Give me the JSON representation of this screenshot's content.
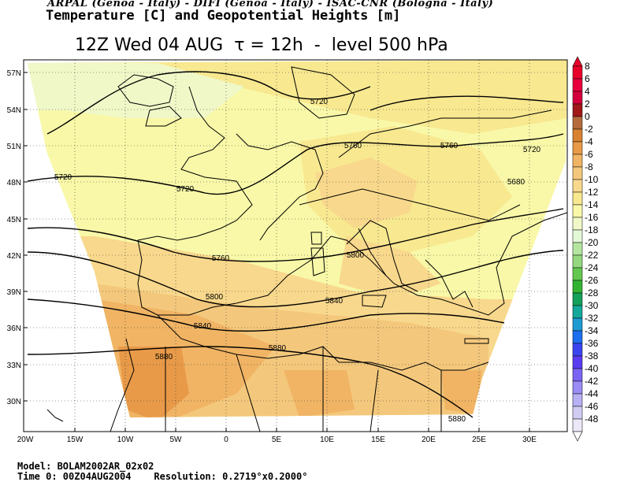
{
  "header": {
    "credit": "ARPAL (Genoa - Italy)  -  DIFI (Genoa - Italy)  -  ISAC-CNR (Bologna - Italy)",
    "title": "Temperature [C] and Geopotential Heights [m]",
    "main": "12Z Wed 04 AUG  τ = 12h  -  level 500 hPa"
  },
  "axes": {
    "lat_ticks": [
      "57N",
      "54N",
      "51N",
      "48N",
      "45N",
      "42N",
      "39N",
      "36N",
      "33N",
      "30N"
    ],
    "lon_ticks": [
      "20W",
      "15W",
      "10W",
      "5W",
      "0",
      "5E",
      "10E",
      "15E",
      "20E",
      "25E",
      "30E"
    ]
  },
  "legend": {
    "values": [
      "8",
      "6",
      "4",
      "2",
      "0",
      "-2",
      "-4",
      "-6",
      "-8",
      "-10",
      "-12",
      "-14",
      "-16",
      "-18",
      "-20",
      "-22",
      "-24",
      "-26",
      "-28",
      "-30",
      "-32",
      "-34",
      "-36",
      "-38",
      "-40",
      "-42",
      "-44",
      "-46",
      "-48"
    ],
    "colors": [
      "#e8002a",
      "#e8003c",
      "#d4003c",
      "#a01818",
      "#b46a3c",
      "#d88232",
      "#e89a48",
      "#f0b464",
      "#f4c87c",
      "#f8d88c",
      "#f8e890",
      "#f8f8a8",
      "#f0f8c8",
      "#e4f8d8",
      "#b4e6a0",
      "#96d880",
      "#64c850",
      "#32b432",
      "#14a05a",
      "#14a89a",
      "#1e9ad2",
      "#1e6ef0",
      "#3c46f0",
      "#5a3cf0",
      "#7a64f4",
      "#9a8cf4",
      "#b8b0f4",
      "#d0ccf4",
      "#ece8f8"
    ]
  },
  "contours": {
    "labels": [
      "5720",
      "5720",
      "5720",
      "5760",
      "5760",
      "5720",
      "5680",
      "5760",
      "5800",
      "5800",
      "5840",
      "5840",
      "5880",
      "5880",
      "5880"
    ]
  },
  "footer": {
    "model": "Model: BOLAM2002AR_02x02",
    "time_res": "Time 0: 00Z04AUG2004    Resolution: 0.2719°x0.2000°"
  }
}
